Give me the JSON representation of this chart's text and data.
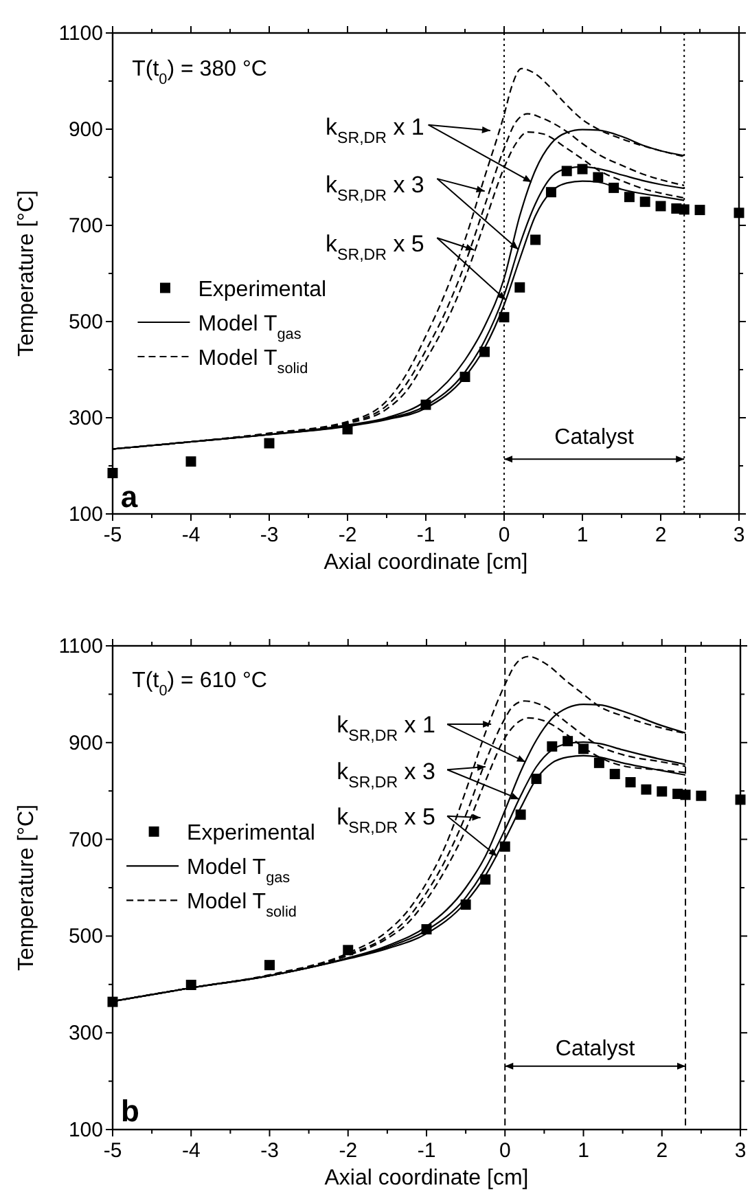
{
  "chart_data": [
    {
      "type": "line",
      "xlabel": "Axial coordinate [cm]",
      "ylabel": "Temperature [°C]",
      "xlim": [
        -5,
        3
      ],
      "ylim": [
        100,
        1100
      ],
      "xticks": [
        -5,
        {
          "value": -4.5,
          "label": null
        },
        -4,
        {
          "value": -3.5,
          "label": null
        },
        -3,
        {
          "value": -2.5,
          "label": null
        },
        -2,
        {
          "value": -1.5,
          "label": null
        },
        -1,
        {
          "value": -0.5,
          "label": null
        },
        0,
        {
          "value": 0.5,
          "label": null
        },
        1,
        {
          "value": 1.5,
          "label": null
        },
        2,
        {
          "value": 2.5,
          "label": null
        },
        3
      ],
      "yticks": [
        100,
        {
          "value": 200,
          "label": null
        },
        300,
        {
          "value": 400,
          "label": null
        },
        500,
        {
          "value": 600,
          "label": null
        },
        700,
        {
          "value": 800,
          "label": null
        },
        900,
        {
          "value": 1000,
          "label": null
        },
        1100
      ],
      "legend": "left",
      "annotations": [
        "T(t$_{0}$) = 380 °C",
        "a",
        "Catalyst",
        {
          "text": "k$_{SR,DR}$ x 1",
          "x": 0.35,
          "y": 790
        },
        {
          "text": "k$_{SR,DR}$ x 3",
          "x": 0.18,
          "y": 650
        },
        {
          "text": "k$_{SR,DR}$ x 5",
          "x": 0.02,
          "y": 545
        }
      ],
      "ref_lines": [
        {
          "axis": "x",
          "value": 0,
          "line_style": "dotted"
        },
        {
          "axis": "x",
          "value": 2.3,
          "line_style": "dotted"
        }
      ],
      "series": [
        {
          "name": "Experimental",
          "type": "scatter",
          "marker": "square",
          "color": "#000000",
          "x": [
            -5,
            -4,
            -3,
            -2,
            -1,
            -0.5,
            -0.25,
            0,
            0.2,
            0.4,
            0.6,
            0.8,
            1,
            1.2,
            1.4,
            1.6,
            1.8,
            2,
            2.2,
            2.3,
            2.5,
            3
          ],
          "values": [
            185,
            209,
            247,
            276,
            327,
            385,
            437,
            509,
            571,
            670,
            769,
            813,
            817,
            800,
            778,
            759,
            749,
            740,
            735,
            733,
            732,
            726
          ]
        },
        {
          "name": "Model T$_{gas}$",
          "type": "line",
          "line_style": "solid",
          "color": "#000000",
          "x": [
            -5,
            -4,
            -3,
            -2,
            -1.5,
            -1,
            -0.5,
            -0.25,
            0,
            0.2,
            0.4,
            0.6,
            0.8,
            1,
            1.2,
            1.5,
            1.8,
            2,
            2.3
          ],
          "values": [
            235,
            250,
            265,
            285,
            300,
            335,
            420,
            490,
            590,
            720,
            815,
            870,
            893,
            899,
            898,
            885,
            865,
            855,
            845
          ]
        },
        {
          "type": "line",
          "line_style": "solid",
          "color": "#000000",
          "x": [
            -5,
            -4,
            -3,
            -2,
            -1.5,
            -1,
            -0.5,
            -0.25,
            0,
            0.2,
            0.4,
            0.6,
            0.8,
            1,
            1.2,
            1.5,
            1.8,
            2,
            2.3
          ],
          "values": [
            235,
            250,
            265,
            283,
            298,
            325,
            395,
            460,
            555,
            660,
            745,
            800,
            818,
            822,
            818,
            805,
            792,
            785,
            777
          ]
        },
        {
          "type": "line",
          "line_style": "solid",
          "color": "#000000",
          "x": [
            -5,
            -4,
            -3,
            -2,
            -1.5,
            -1,
            -0.5,
            -0.25,
            0,
            0.2,
            0.4,
            0.6,
            0.8,
            1,
            1.2,
            1.5,
            1.8,
            2,
            2.3
          ],
          "values": [
            235,
            250,
            265,
            282,
            296,
            320,
            385,
            445,
            535,
            630,
            720,
            770,
            788,
            792,
            790,
            775,
            765,
            760,
            752
          ]
        },
        {
          "name": "Model T$_{solid}$",
          "type": "line",
          "line_style": "dashed",
          "color": "#000000",
          "x": [
            -5,
            -4,
            -3,
            -2,
            -1.5,
            -1.25,
            -1,
            -0.75,
            -0.5,
            -0.25,
            0,
            0.1,
            0.22,
            0.4,
            0.6,
            0.8,
            1,
            1.2,
            1.5,
            2,
            2.3
          ],
          "values": [
            235,
            250,
            268,
            292,
            335,
            390,
            470,
            560,
            670,
            800,
            930,
            990,
            1026,
            1015,
            985,
            950,
            920,
            900,
            880,
            855,
            843
          ]
        },
        {
          "type": "line",
          "line_style": "dashed",
          "color": "#000000",
          "x": [
            -5,
            -4,
            -3,
            -2,
            -1.5,
            -1.25,
            -1,
            -0.75,
            -0.5,
            -0.25,
            0,
            0.15,
            0.3,
            0.5,
            0.8,
            1,
            1.2,
            1.5,
            1.8,
            2,
            2.3
          ],
          "values": [
            235,
            250,
            267,
            290,
            325,
            370,
            440,
            520,
            620,
            740,
            860,
            915,
            932,
            922,
            895,
            870,
            848,
            825,
            805,
            795,
            783
          ]
        },
        {
          "type": "line",
          "line_style": "dashed",
          "color": "#000000",
          "x": [
            -5,
            -4,
            -3,
            -2,
            -1.5,
            -1.25,
            -1,
            -0.75,
            -0.5,
            -0.25,
            0,
            0.15,
            0.3,
            0.5,
            0.8,
            1,
            1.2,
            1.5,
            1.8,
            2,
            2.3
          ],
          "values": [
            235,
            250,
            266,
            288,
            318,
            355,
            420,
            495,
            590,
            705,
            820,
            870,
            894,
            890,
            860,
            838,
            815,
            793,
            775,
            767,
            757
          ]
        }
      ]
    },
    {
      "type": "line",
      "xlabel": "Axial coordinate [cm]",
      "ylabel": "Temperature [°C]",
      "xlim": [
        -5,
        3
      ],
      "ylim": [
        100,
        1100
      ],
      "xticks": [
        -5,
        {
          "value": -4.5,
          "label": null
        },
        -4,
        {
          "value": -3.5,
          "label": null
        },
        -3,
        {
          "value": -2.5,
          "label": null
        },
        -2,
        {
          "value": -1.5,
          "label": null
        },
        -1,
        {
          "value": -0.5,
          "label": null
        },
        0,
        {
          "value": 0.5,
          "label": null
        },
        1,
        {
          "value": 1.5,
          "label": null
        },
        2,
        {
          "value": 2.5,
          "label": null
        },
        3
      ],
      "yticks": [
        100,
        {
          "value": 200,
          "label": null
        },
        300,
        {
          "value": 400,
          "label": null
        },
        500,
        {
          "value": 600,
          "label": null
        },
        700,
        {
          "value": 800,
          "label": null
        },
        900,
        {
          "value": 1000,
          "label": null
        },
        1100
      ],
      "legend": "left",
      "annotations": [
        "T(t$_{0}$) = 610 °C",
        "b",
        "Catalyst",
        {
          "text": "k$_{SR,DR}$ x 1",
          "x": 0.26,
          "y": 860
        },
        {
          "text": "k$_{SR,DR}$ x 3",
          "x": 0.18,
          "y": 783
        },
        {
          "text": "k$_{SR,DR}$ x 5",
          "x": -0.1,
          "y": 665
        }
      ],
      "ref_lines": [
        {
          "axis": "x",
          "value": 0,
          "line_style": "dashed"
        },
        {
          "axis": "x",
          "value": 2.3,
          "line_style": "dashed"
        }
      ],
      "series": [
        {
          "name": "Experimental",
          "type": "scatter",
          "marker": "square",
          "color": "#000000",
          "x": [
            -5,
            -4,
            -3,
            -2,
            -1,
            -0.5,
            -0.25,
            0,
            0.2,
            0.4,
            0.6,
            0.8,
            1,
            1.2,
            1.4,
            1.6,
            1.8,
            2,
            2.2,
            2.3,
            2.5,
            3
          ],
          "values": [
            364,
            399,
            440,
            471,
            514,
            565,
            617,
            685,
            751,
            825,
            892,
            903,
            887,
            858,
            835,
            818,
            803,
            799,
            794,
            792,
            790,
            782
          ]
        },
        {
          "name": "Model T$_{gas}$",
          "type": "line",
          "line_style": "solid",
          "color": "#000000",
          "x": [
            -5,
            -4,
            -3,
            -2,
            -1.5,
            -1,
            -0.5,
            -0.25,
            0,
            0.2,
            0.4,
            0.6,
            0.8,
            1,
            1.2,
            1.5,
            2,
            2.3
          ],
          "values": [
            365,
            393,
            418,
            455,
            480,
            520,
            600,
            665,
            760,
            840,
            905,
            950,
            972,
            979,
            978,
            965,
            935,
            920
          ]
        },
        {
          "type": "line",
          "line_style": "solid",
          "color": "#000000",
          "x": [
            -5,
            -4,
            -3,
            -2,
            -1.5,
            -1,
            -0.5,
            -0.25,
            0,
            0.2,
            0.4,
            0.6,
            0.8,
            1,
            1.2,
            1.5,
            2,
            2.3
          ],
          "values": [
            365,
            393,
            418,
            454,
            477,
            512,
            580,
            640,
            720,
            790,
            850,
            885,
            898,
            901,
            898,
            885,
            865,
            855
          ]
        },
        {
          "type": "line",
          "line_style": "solid",
          "color": "#000000",
          "x": [
            -5,
            -4,
            -3,
            -2,
            -1.5,
            -1,
            -0.5,
            -0.25,
            0,
            0.2,
            0.4,
            0.6,
            0.8,
            1,
            1.2,
            1.5,
            2,
            2.3
          ],
          "values": [
            365,
            393,
            418,
            453,
            474,
            505,
            570,
            625,
            700,
            765,
            825,
            858,
            870,
            873,
            870,
            858,
            842,
            833
          ]
        },
        {
          "name": "Model T$_{solid}$",
          "type": "line",
          "line_style": "dashed",
          "color": "#000000",
          "x": [
            -5,
            -4,
            -3,
            -2,
            -1.5,
            -1.25,
            -1,
            -0.75,
            -0.5,
            -0.25,
            0,
            0.15,
            0.3,
            0.5,
            0.8,
            1,
            1.2,
            1.5,
            2,
            2.3
          ],
          "values": [
            365,
            393,
            420,
            465,
            510,
            550,
            610,
            690,
            800,
            920,
            1020,
            1065,
            1078,
            1065,
            1025,
            1000,
            975,
            955,
            930,
            919
          ]
        },
        {
          "type": "line",
          "line_style": "dashed",
          "color": "#000000",
          "x": [
            -5,
            -4,
            -3,
            -2,
            -1.5,
            -1.25,
            -1,
            -0.75,
            -0.5,
            -0.25,
            0,
            0.1,
            0.25,
            0.5,
            0.8,
            1,
            1.2,
            1.5,
            2,
            2.3
          ],
          "values": [
            365,
            393,
            419,
            462,
            500,
            535,
            590,
            660,
            750,
            860,
            950,
            975,
            986,
            975,
            940,
            915,
            893,
            875,
            860,
            851
          ]
        },
        {
          "type": "line",
          "line_style": "dashed",
          "color": "#000000",
          "x": [
            -5,
            -4,
            -3,
            -2,
            -1.5,
            -1.25,
            -1,
            -0.75,
            -0.5,
            -0.25,
            0,
            0.15,
            0.3,
            0.5,
            0.8,
            1,
            1.2,
            1.5,
            2,
            2.3
          ],
          "values": [
            365,
            393,
            418,
            460,
            495,
            525,
            575,
            640,
            720,
            820,
            910,
            940,
            951,
            945,
            915,
            890,
            870,
            852,
            843,
            838
          ]
        }
      ]
    }
  ]
}
